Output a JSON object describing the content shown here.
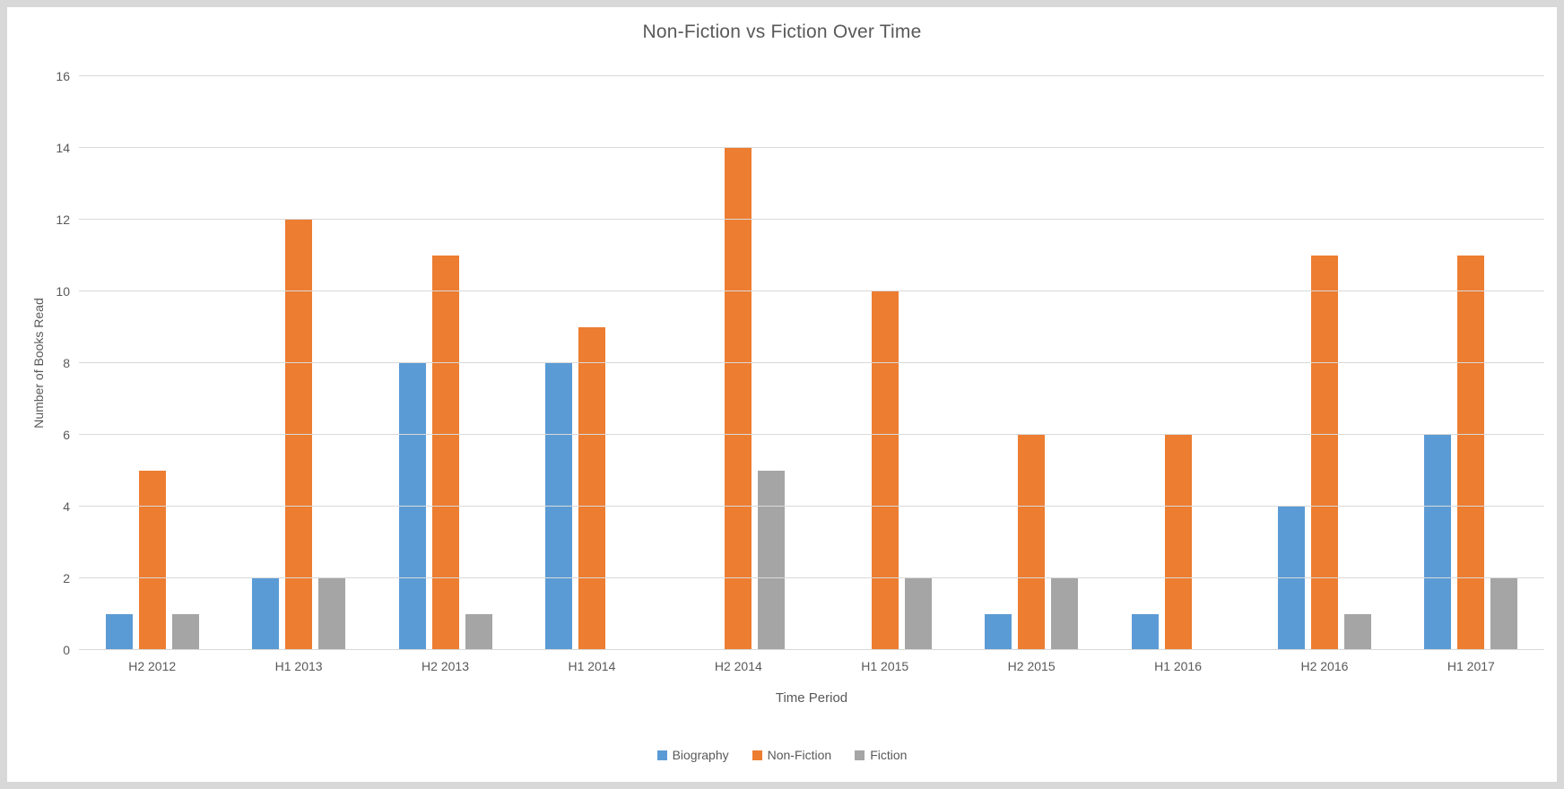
{
  "colors": {
    "outer_background": "#d8d8d8",
    "panel_background": "#ffffff",
    "text": "#595959",
    "gridline": "#d9d9d9"
  },
  "chart_data": {
    "type": "bar",
    "title": "Non-Fiction vs Fiction Over Time",
    "xlabel": "Time Period",
    "ylabel": "Number of Books Read",
    "ylim": [
      0,
      16
    ],
    "ytick_step": 2,
    "ytick_labels": [
      "0",
      "2",
      "4",
      "6",
      "8",
      "10",
      "12",
      "14",
      "16"
    ],
    "grid": true,
    "legend_position": "bottom",
    "categories": [
      "H2 2012",
      "H1 2013",
      "H2 2013",
      "H1 2014",
      "H2 2014",
      "H1 2015",
      "H2 2015",
      "H1 2016",
      "H2 2016",
      "H1 2017"
    ],
    "series": [
      {
        "name": "Biography",
        "color": "#5B9BD5",
        "values": [
          1,
          2,
          8,
          8,
          0,
          0,
          1,
          1,
          4,
          6
        ]
      },
      {
        "name": "Non-Fiction",
        "color": "#ED7D31",
        "values": [
          5,
          12,
          11,
          9,
          14,
          10,
          6,
          6,
          11,
          11
        ]
      },
      {
        "name": "Fiction",
        "color": "#A5A5A5",
        "values": [
          1,
          2,
          1,
          0,
          5,
          2,
          2,
          0,
          1,
          2
        ]
      }
    ]
  }
}
